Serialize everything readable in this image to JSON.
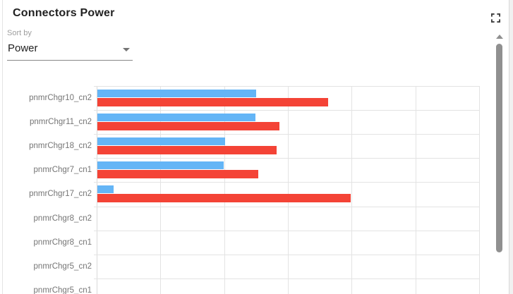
{
  "header": {
    "title": "Connectors Power"
  },
  "sort": {
    "label": "Sort by",
    "value": "Power"
  },
  "icons": {
    "fullscreen": "fullscreen-expand",
    "sort_dropdown_arrow": "triangle-down",
    "scroll_up": "triangle-up"
  },
  "chart_data": {
    "type": "bar",
    "orientation": "horizontal",
    "title": "Connectors Power",
    "categories": [
      "pnmrChgr10_cn2",
      "pnmrChgr11_cn2",
      "pnmrChgr18_cn2",
      "pnmrChgr7_cn1",
      "pnmrChgr17_cn2",
      "pnmrChgr8_cn2",
      "pnmrChgr8_cn1",
      "pnmrChgr5_cn2",
      "pnmrChgr5_cn1"
    ],
    "series": [
      {
        "name": "blue",
        "color": "#64b5f6",
        "values": [
          2.49,
          2.48,
          2.0,
          1.98,
          0.25,
          0,
          0,
          0,
          0
        ]
      },
      {
        "name": "red",
        "color": "#f44336",
        "values": [
          3.62,
          2.86,
          2.81,
          2.52,
          3.97,
          0,
          0,
          0,
          0
        ]
      }
    ],
    "xlim": [
      0,
      6
    ],
    "x_gridline_interval": 1,
    "x_tick_labels_visible": false,
    "ylabel": "",
    "xlabel": "",
    "legend_position": "none",
    "grid": true,
    "units": "gridline units (axis tick labels cut off below visible area)"
  },
  "colors": {
    "bar_blue": "#64b5f6",
    "bar_red": "#f44336",
    "gridline": "#e3e3e3",
    "category_label": "#757575",
    "title_text": "#212121",
    "sort_label_text": "#9e9e9e",
    "scrollbar_thumb": "#909090"
  }
}
